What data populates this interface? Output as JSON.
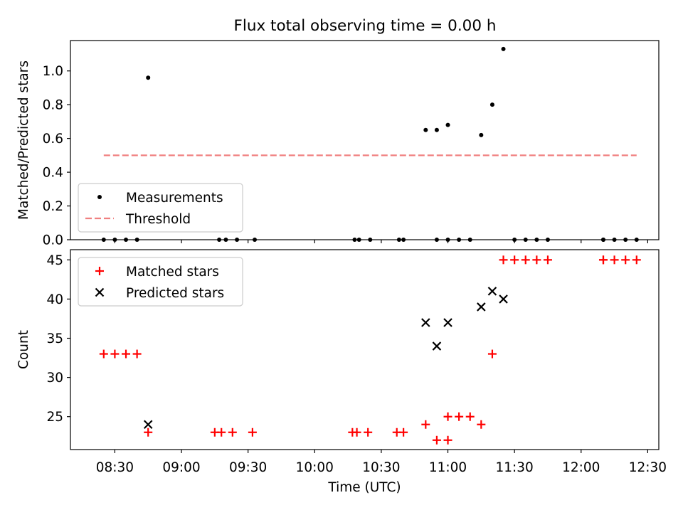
{
  "title": "Flux total observing time = 0.00 h",
  "chart_data": [
    {
      "type": "scatter",
      "ylabel": "Matched/Predicted stars",
      "ylim": [
        0,
        1.18
      ],
      "yticks": [
        0.0,
        0.2,
        0.4,
        0.6,
        0.8,
        1.0
      ],
      "ytick_labels": [
        "0.0",
        "0.2",
        "0.4",
        "0.6",
        "0.8",
        "1.0"
      ],
      "xlim": [
        "08:10",
        "12:35"
      ],
      "grid": false,
      "legend": {
        "position": "lower-left",
        "entries": [
          "Measurements",
          "Threshold"
        ]
      },
      "series": [
        {
          "name": "Measurements",
          "marker": "dot",
          "color": "#000000",
          "points": [
            [
              "08:25",
              0.0
            ],
            [
              "08:30",
              0.0
            ],
            [
              "08:35",
              0.0
            ],
            [
              "08:40",
              0.0
            ],
            [
              "08:45",
              0.96
            ],
            [
              "09:17",
              0.0
            ],
            [
              "09:20",
              0.0
            ],
            [
              "09:25",
              0.0
            ],
            [
              "09:33",
              0.0
            ],
            [
              "10:18",
              0.0
            ],
            [
              "10:20",
              0.0
            ],
            [
              "10:25",
              0.0
            ],
            [
              "10:38",
              0.0
            ],
            [
              "10:40",
              0.0
            ],
            [
              "10:50",
              0.65
            ],
            [
              "10:55",
              0.65
            ],
            [
              "10:55",
              0.0
            ],
            [
              "11:00",
              0.0
            ],
            [
              "11:00",
              0.68
            ],
            [
              "11:05",
              0.0
            ],
            [
              "11:10",
              0.0
            ],
            [
              "11:15",
              0.62
            ],
            [
              "11:20",
              0.8
            ],
            [
              "11:25",
              1.13
            ],
            [
              "11:30",
              0.0
            ],
            [
              "11:35",
              0.0
            ],
            [
              "11:40",
              0.0
            ],
            [
              "11:45",
              0.0
            ],
            [
              "12:10",
              0.0
            ],
            [
              "12:10",
              0.0
            ],
            [
              "12:15",
              0.0
            ],
            [
              "12:20",
              0.0
            ],
            [
              "12:25",
              0.0
            ]
          ]
        },
        {
          "name": "Threshold",
          "style": "dashed-line",
          "color": "#f08080",
          "points": [
            [
              "08:25",
              0.5
            ],
            [
              "12:25",
              0.5
            ]
          ]
        }
      ]
    },
    {
      "type": "scatter",
      "xlabel": "Time (UTC)",
      "ylabel": "Count",
      "ylim": [
        20.8,
        46.3
      ],
      "yticks": [
        25,
        30,
        35,
        40,
        45
      ],
      "ytick_labels": [
        "25",
        "30",
        "35",
        "40",
        "45"
      ],
      "xlim": [
        "08:10",
        "12:35"
      ],
      "xticks": [
        "08:30",
        "09:00",
        "09:30",
        "10:00",
        "10:30",
        "11:00",
        "11:30",
        "12:00",
        "12:30"
      ],
      "xtick_labels": [
        "08:30",
        "09:00",
        "09:30",
        "10:00",
        "10:30",
        "11:00",
        "11:30",
        "12:00",
        "12:30"
      ],
      "grid": false,
      "legend": {
        "position": "upper-left",
        "entries": [
          "Matched stars",
          "Predicted stars"
        ]
      },
      "series": [
        {
          "name": "Matched stars",
          "marker": "plus",
          "color": "#ff0000",
          "points": [
            [
              "08:25",
              33
            ],
            [
              "08:30",
              33
            ],
            [
              "08:35",
              33
            ],
            [
              "08:40",
              33
            ],
            [
              "08:45",
              23
            ],
            [
              "09:15",
              23
            ],
            [
              "09:18",
              23
            ],
            [
              "09:23",
              23
            ],
            [
              "09:32",
              23
            ],
            [
              "10:17",
              23
            ],
            [
              "10:19",
              23
            ],
            [
              "10:24",
              23
            ],
            [
              "10:37",
              23
            ],
            [
              "10:40",
              23
            ],
            [
              "10:50",
              24
            ],
            [
              "10:55",
              22
            ],
            [
              "11:00",
              22
            ],
            [
              "11:00",
              25
            ],
            [
              "11:05",
              25
            ],
            [
              "11:10",
              25
            ],
            [
              "11:15",
              24
            ],
            [
              "11:20",
              33
            ],
            [
              "11:25",
              45
            ],
            [
              "11:30",
              45
            ],
            [
              "11:35",
              45
            ],
            [
              "11:40",
              45
            ],
            [
              "11:45",
              45
            ],
            [
              "12:10",
              45
            ],
            [
              "12:10",
              45
            ],
            [
              "12:15",
              45
            ],
            [
              "12:20",
              45
            ],
            [
              "12:25",
              45
            ]
          ]
        },
        {
          "name": "Predicted stars",
          "marker": "x",
          "color": "#000000",
          "points": [
            [
              "08:45",
              24
            ],
            [
              "10:50",
              37
            ],
            [
              "10:55",
              34
            ],
            [
              "11:00",
              37
            ],
            [
              "11:15",
              39
            ],
            [
              "11:20",
              41
            ],
            [
              "11:25",
              40
            ]
          ]
        }
      ]
    }
  ]
}
